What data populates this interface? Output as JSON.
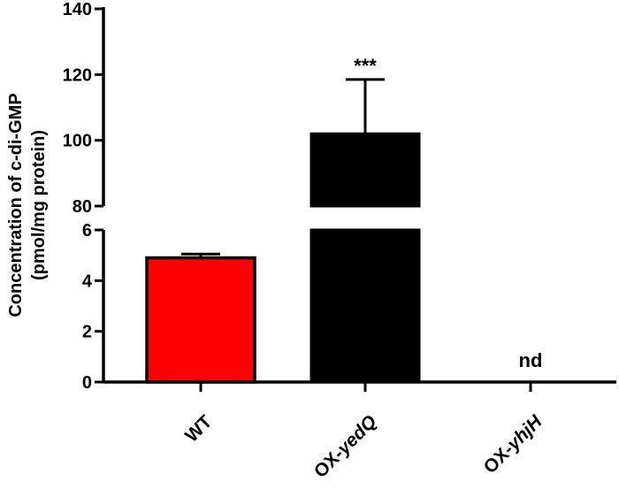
{
  "chart_data": {
    "type": "bar",
    "ylabel": [
      "Concentration of c-di-GMP",
      "(pmol/mg protein)"
    ],
    "y_axis": {
      "broken": true,
      "lower_segment": {
        "range": [
          0,
          6
        ],
        "ticks": [
          "0",
          "2",
          "4",
          "6"
        ]
      },
      "upper_segment": {
        "range": [
          80,
          140
        ],
        "ticks": [
          "80",
          "100",
          "120",
          "140"
        ]
      }
    },
    "categories": [
      {
        "label": "WT",
        "prefix": "WT",
        "italic": ""
      },
      {
        "label": "OX-yedQ",
        "prefix": "OX-",
        "italic": "yedQ"
      },
      {
        "label": "OX-yhjH",
        "prefix": "OX-",
        "italic": "yhjH"
      }
    ],
    "values": [
      4.9,
      102,
      null
    ],
    "errors": [
      0.15,
      16.5,
      null
    ],
    "colors": [
      "#ff0000",
      "#000000",
      "#000000"
    ],
    "annotations": [
      "",
      "***",
      "nd"
    ],
    "grid": false,
    "legend": "none"
  }
}
